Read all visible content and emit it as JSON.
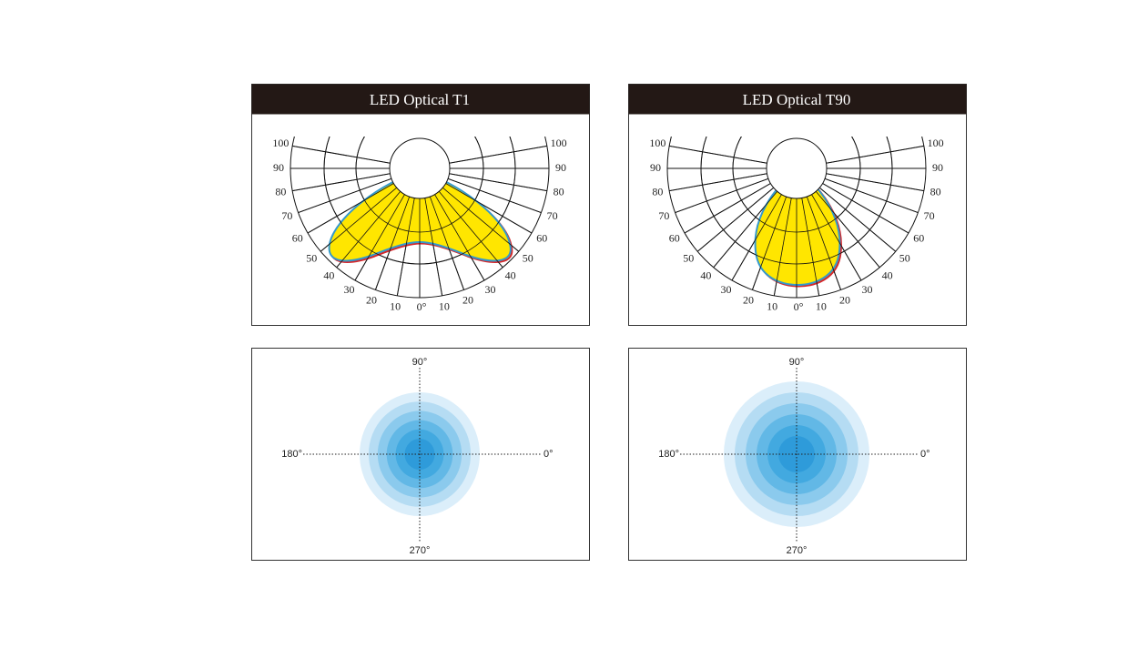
{
  "panels": [
    {
      "title": "LED Optical T1",
      "angle_labels": [
        "100",
        "90",
        "80",
        "70",
        "60",
        "50",
        "40",
        "30",
        "20",
        "10"
      ],
      "zero_label": "0°",
      "iso_labels": {
        "top": "90°",
        "left": "180°",
        "right": "0°",
        "bottom": "270°"
      }
    },
    {
      "title": "LED Optical T90",
      "angle_labels": [
        "100",
        "90",
        "80",
        "70",
        "60",
        "50",
        "40",
        "30",
        "20",
        "10"
      ],
      "zero_label": "0°",
      "iso_labels": {
        "top": "90°",
        "left": "180°",
        "right": "0°",
        "bottom": "270°"
      }
    }
  ]
}
